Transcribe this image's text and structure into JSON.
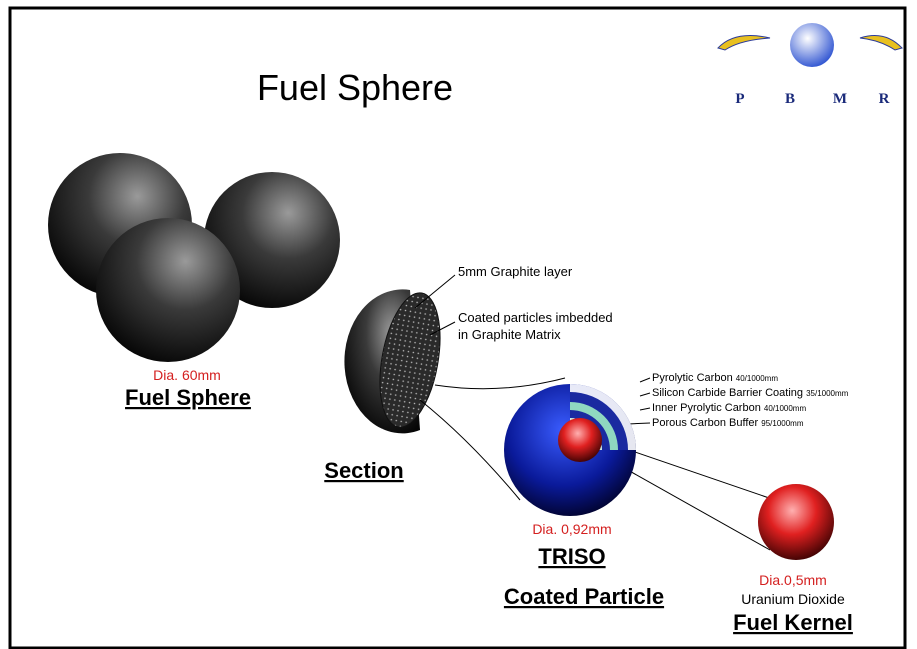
{
  "title": "Fuel Sphere",
  "logo": {
    "letters": [
      "P",
      "B",
      "M",
      "R"
    ]
  },
  "fuel_sphere": {
    "diameter": "Dia. 60mm",
    "label": "Fuel Sphere"
  },
  "section": {
    "label": "Section",
    "callouts": [
      "5mm Graphite layer",
      "Coated particles imbedded",
      "in Graphite Matrix"
    ]
  },
  "triso": {
    "diameter": "Dia. 0,92mm",
    "label": "TRISO",
    "sublabel": "Coated Particle",
    "layers": [
      {
        "name": "Pyrolytic Carbon",
        "thickness": "40/1000mm"
      },
      {
        "name": "Silicon Carbide Barrier Coating",
        "thickness": "35/1000mm"
      },
      {
        "name": "Inner Pyrolytic Carbon",
        "thickness": "40/1000mm"
      },
      {
        "name": "Porous Carbon Buffer",
        "thickness": "95/1000mm"
      }
    ]
  },
  "kernel": {
    "diameter": "Dia.0,5mm",
    "material": "Uranium Dioxide",
    "label": "Fuel Kernel"
  }
}
